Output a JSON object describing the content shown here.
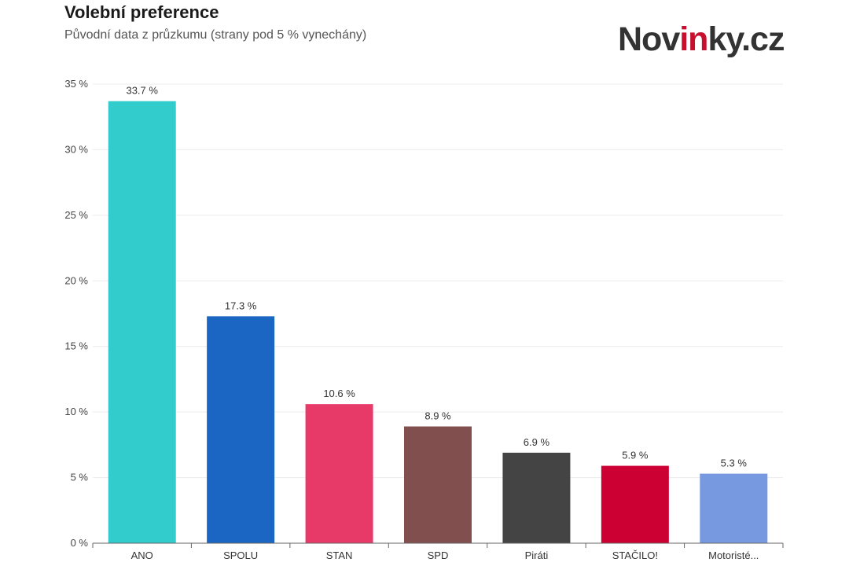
{
  "title": "Volební preference",
  "subtitle": "Původní data z průzkumu (strany pod 5 % vynechány)",
  "logo": {
    "pre": "Nov",
    "accent": "in",
    "post": "ky.cz"
  },
  "colors": {
    "accent": "#c8102e"
  },
  "chart_data": {
    "type": "bar",
    "categories": [
      "ANO",
      "SPOLU",
      "STAN",
      "SPD",
      "Piráti",
      "STAČILO!",
      "Motoristé..."
    ],
    "values": [
      33.7,
      17.3,
      10.6,
      8.9,
      6.9,
      5.9,
      5.3
    ],
    "value_labels": [
      "33.7 %",
      "17.3 %",
      "10.6 %",
      "8.9 %",
      "6.9 %",
      "5.9 %",
      "5.3 %"
    ],
    "colors": [
      "#33cccc",
      "#1a66c2",
      "#e83a68",
      "#824f4f",
      "#444444",
      "#cc0033",
      "#7799e0"
    ],
    "ylim": [
      0,
      35
    ],
    "yticks": [
      0,
      5,
      10,
      15,
      20,
      25,
      30,
      35
    ],
    "ytick_labels": [
      "0 %",
      "5 %",
      "10 %",
      "15 %",
      "20 %",
      "25 %",
      "30 %",
      "35 %"
    ],
    "grid": true
  }
}
